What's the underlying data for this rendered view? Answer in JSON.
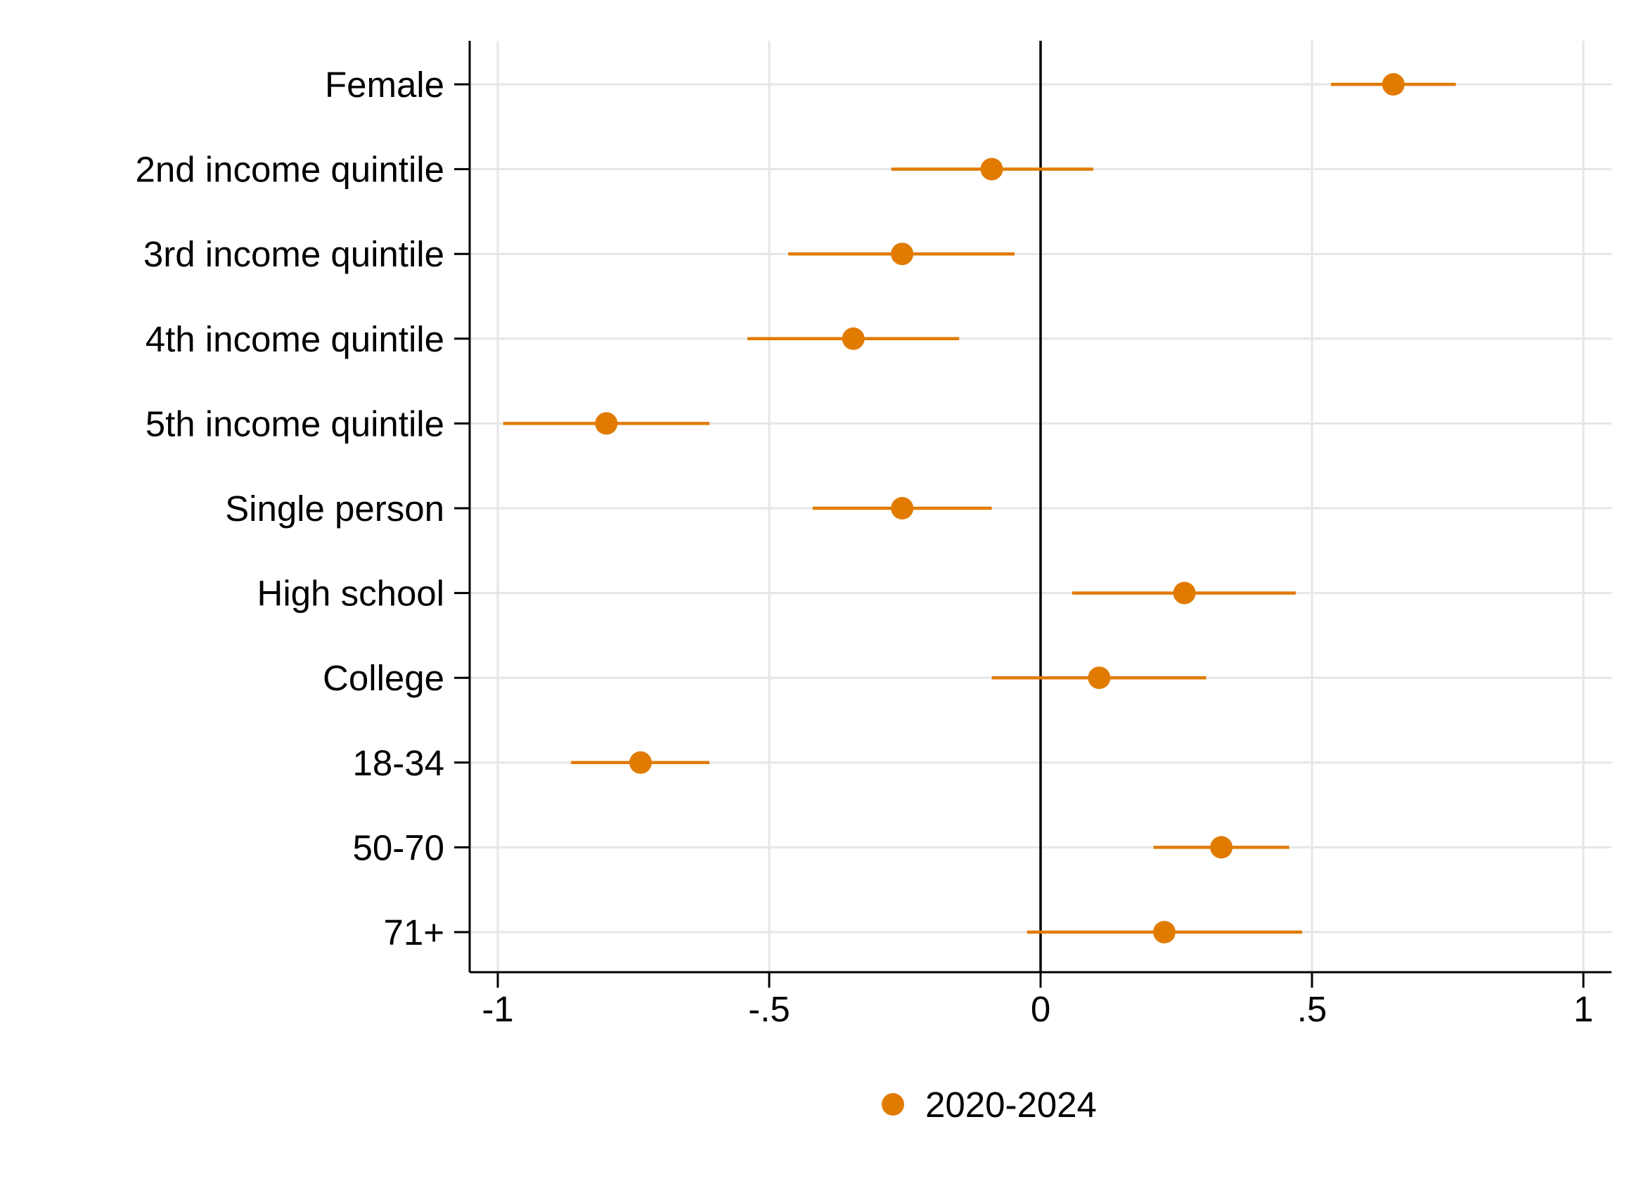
{
  "chart_data": {
    "type": "scatter",
    "subtype": "coefficient-plot",
    "categories": [
      "Female",
      "2nd income quintile",
      "3rd income quintile",
      "4th income quintile",
      "5th income quintile",
      "Single person",
      "High school",
      "College",
      "18-34",
      "50-70",
      "71+"
    ],
    "series": [
      {
        "name": "2020-2024",
        "color": "#E07B00",
        "values": [
          0.65,
          -0.09,
          -0.255,
          -0.345,
          -0.8,
          -0.255,
          0.265,
          0.108,
          -0.737,
          0.333,
          0.228
        ],
        "ci_low": [
          0.535,
          -0.275,
          -0.465,
          -0.54,
          -0.99,
          -0.42,
          0.058,
          -0.09,
          -0.865,
          0.208,
          -0.025
        ],
        "ci_high": [
          0.765,
          0.097,
          -0.048,
          -0.15,
          -0.61,
          -0.09,
          0.47,
          0.305,
          -0.61,
          0.458,
          0.482
        ]
      }
    ],
    "x_ticks": [
      "-1",
      "-.5",
      "0",
      ".5",
      "1"
    ],
    "x_tick_values": [
      -1,
      -0.5,
      0,
      0.5,
      1
    ],
    "xlim": [
      -1.05,
      1.05
    ],
    "reference_line": 0,
    "grid": true,
    "legend_position": "bottom-center",
    "title": "",
    "xlabel": "",
    "ylabel": ""
  }
}
